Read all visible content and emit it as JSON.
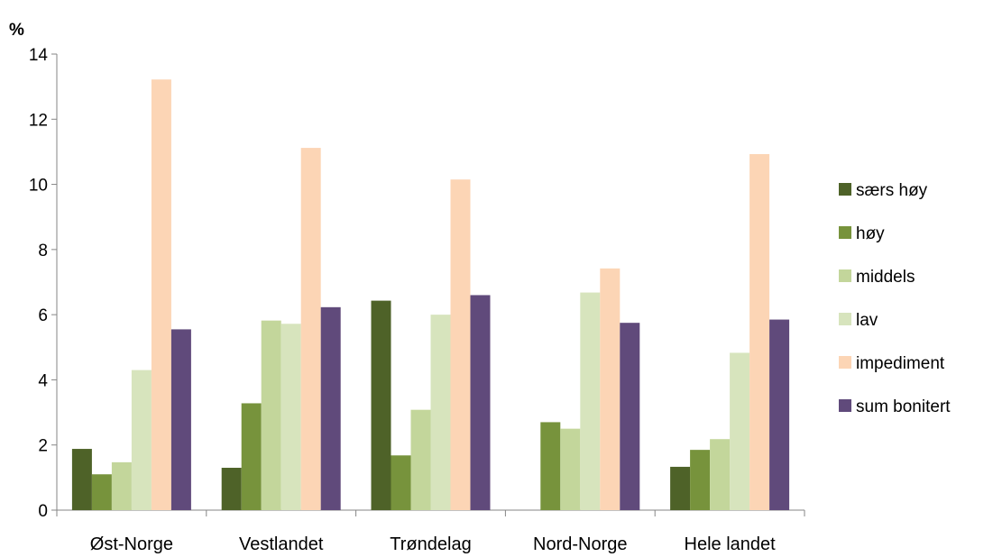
{
  "chart_data": {
    "type": "bar",
    "y_unit_label": "%",
    "categories": [
      "Øst-Norge",
      "Vestlandet",
      "Trøndelag",
      "Nord-Norge",
      "Hele landet"
    ],
    "yticks": [
      "0",
      "2",
      "4",
      "6",
      "8",
      "10",
      "12",
      "14"
    ],
    "ylim": [
      0,
      14
    ],
    "legend_position": "right",
    "series": [
      {
        "name": "særs høy",
        "color": "#4e6228",
        "values": [
          1.88,
          1.3,
          6.43,
          0,
          1.33
        ]
      },
      {
        "name": "høy",
        "color": "#77933c",
        "values": [
          1.1,
          3.28,
          1.68,
          2.7,
          1.85
        ]
      },
      {
        "name": "middels",
        "color": "#c3d69b",
        "values": [
          1.47,
          5.82,
          3.08,
          2.5,
          2.18
        ]
      },
      {
        "name": "lav",
        "color": "#d7e4bd",
        "values": [
          4.3,
          5.72,
          6.0,
          6.68,
          4.83
        ]
      },
      {
        "name": "impediment",
        "color": "#fcd5b5",
        "values": [
          13.22,
          11.12,
          10.15,
          7.42,
          10.93
        ]
      },
      {
        "name": "sum bonitert",
        "color": "#604a7b",
        "values": [
          5.55,
          6.23,
          6.6,
          5.75,
          5.85
        ]
      }
    ]
  }
}
